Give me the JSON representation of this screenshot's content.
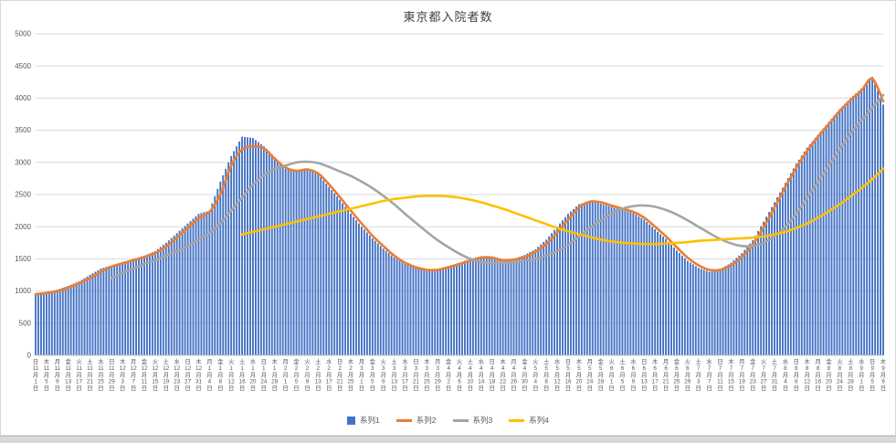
{
  "chart": {
    "title": "東京都入院者数",
    "legend_position": "bottom",
    "colors": {
      "bar": "#4472C4",
      "line2": "#ED7D31",
      "line3": "#A5A5A5",
      "line4": "#FFC000",
      "gridline": "#D9D9D9",
      "axis_text": "#595959",
      "title_text": "#404040"
    }
  },
  "chart_data": {
    "type": "combo",
    "title": "東京都入院者数",
    "ylabel": "",
    "xlabel": "",
    "ylim": [
      0,
      5000
    ],
    "ytick_interval": 500,
    "y_ticks": [
      0,
      500,
      1000,
      1500,
      2000,
      2500,
      3000,
      3500,
      4000,
      4500,
      5000
    ],
    "grid": "horizontal",
    "legend_position": "bottom",
    "x_ticks": [
      "日 11月1日",
      "木 11月5日",
      "月 11月9日",
      "金 11月13日",
      "火 11月17日",
      "土 11月21日",
      "水 11月25日",
      "日 11月29日",
      "木 12月3日",
      "月 12月7日",
      "金 12月11日",
      "火 12月15日",
      "土 12月19日",
      "水 12月23日",
      "日 12月27日",
      "木 12月31日",
      "月 1月4日",
      "金 1月8日",
      "火 1月12日",
      "土 1月16日",
      "水 1月20日",
      "日 1月24日",
      "木 1月28日",
      "月 2月1日",
      "金 2月5日",
      "火 2月9日",
      "土 2月13日",
      "水 2月17日",
      "日 2月21日",
      "木 2月25日",
      "月 3月1日",
      "金 3月5日",
      "火 3月9日",
      "土 3月13日",
      "水 3月17日",
      "日 3月21日",
      "木 3月25日",
      "月 3月29日",
      "金 4月2日",
      "火 4月6日",
      "土 4月10日",
      "水 4月14日",
      "日 4月18日",
      "木 4月22日",
      "月 4月26日",
      "金 4月30日",
      "火 5月4日",
      "土 5月8日",
      "水 5月12日",
      "日 5月16日",
      "木 5月20日",
      "月 5月24日",
      "金 5月28日",
      "火 6月1日",
      "土 6月5日",
      "水 6月9日",
      "日 6月13日",
      "木 6月17日",
      "月 6月21日",
      "金 6月25日",
      "火 6月29日",
      "土 7月3日",
      "水 7月7日",
      "日 7月11日",
      "木 7月15日",
      "月 7月19日",
      "金 7月23日",
      "火 7月27日",
      "土 7月31日",
      "水 8月4日",
      "日 8月8日",
      "木 8月12日",
      "月 8月16日",
      "金 8月20日",
      "火 8月24日",
      "土 8月28日",
      "水 9月1日",
      "日 9月5日",
      "木 9月9日"
    ],
    "sampling_note": "values read off the chart at the 4-day x-axis tick positions; bars in the source are daily",
    "series": [
      {
        "name": "系列1",
        "type": "bar",
        "color": "#4472C4",
        "values": [
          950,
          980,
          1020,
          1080,
          1150,
          1250,
          1350,
          1400,
          1450,
          1500,
          1550,
          1620,
          1750,
          1900,
          2050,
          2200,
          2250,
          2700,
          3100,
          3400,
          3380,
          3250,
          3080,
          2900,
          2860,
          2900,
          2820,
          2620,
          2420,
          2200,
          2000,
          1820,
          1660,
          1520,
          1420,
          1360,
          1310,
          1340,
          1390,
          1440,
          1500,
          1540,
          1510,
          1460,
          1500,
          1560,
          1650,
          1800,
          2000,
          2200,
          2350,
          2400,
          2360,
          2310,
          2260,
          2210,
          2110,
          1960,
          1810,
          1630,
          1470,
          1360,
          1300,
          1340,
          1440,
          1590,
          1790,
          2080,
          2380,
          2680,
          2980,
          3230,
          3430,
          3630,
          3830,
          4000,
          4150,
          4330,
          3900
        ]
      },
      {
        "name": "系列2",
        "type": "line",
        "color": "#ED7D31",
        "values": [
          950,
          970,
          1000,
          1050,
          1120,
          1200,
          1300,
          1380,
          1430,
          1480,
          1530,
          1590,
          1690,
          1830,
          1980,
          2130,
          2230,
          2500,
          2950,
          3200,
          3250,
          3220,
          3060,
          2920,
          2870,
          2890,
          2830,
          2660,
          2460,
          2250,
          2050,
          1860,
          1700,
          1550,
          1440,
          1370,
          1330,
          1330,
          1370,
          1420,
          1470,
          1520,
          1520,
          1480,
          1490,
          1530,
          1610,
          1730,
          1910,
          2110,
          2300,
          2390,
          2380,
          2330,
          2280,
          2230,
          2140,
          2000,
          1850,
          1680,
          1520,
          1400,
          1330,
          1330,
          1400,
          1530,
          1720,
          1990,
          2300,
          2620,
          2920,
          3180,
          3400,
          3600,
          3800,
          3970,
          4120,
          4300,
          3950
        ]
      },
      {
        "name": "系列3",
        "type": "line",
        "color": "#A5A5A5",
        "values": [
          null,
          null,
          null,
          null,
          null,
          null,
          null,
          1200,
          1280,
          1350,
          1420,
          1480,
          1550,
          1620,
          1700,
          1800,
          1900,
          2050,
          2250,
          2450,
          2650,
          2800,
          2900,
          2950,
          3000,
          3010,
          2990,
          2930,
          2860,
          2790,
          2700,
          2600,
          2480,
          2350,
          2200,
          2060,
          1920,
          1790,
          1680,
          1580,
          1500,
          1450,
          1430,
          1430,
          1450,
          1470,
          1500,
          1550,
          1620,
          1720,
          1850,
          1980,
          2100,
          2200,
          2280,
          2320,
          2330,
          2310,
          2260,
          2190,
          2100,
          2000,
          1900,
          1810,
          1740,
          1700,
          1700,
          1750,
          1850,
          2000,
          2200,
          2450,
          2700,
          2950,
          3200,
          3450,
          3650,
          3850,
          4050
        ]
      },
      {
        "name": "系列4",
        "type": "line",
        "color": "#FFC000",
        "values": [
          null,
          null,
          null,
          null,
          null,
          null,
          null,
          null,
          null,
          null,
          null,
          null,
          null,
          null,
          null,
          null,
          null,
          null,
          null,
          1880,
          1920,
          1960,
          2000,
          2040,
          2080,
          2120,
          2160,
          2200,
          2240,
          2280,
          2320,
          2360,
          2400,
          2430,
          2450,
          2470,
          2480,
          2480,
          2470,
          2450,
          2420,
          2380,
          2330,
          2280,
          2220,
          2160,
          2100,
          2040,
          1980,
          1930,
          1880,
          1840,
          1800,
          1770,
          1750,
          1740,
          1730,
          1730,
          1740,
          1750,
          1760,
          1780,
          1790,
          1800,
          1810,
          1820,
          1830,
          1850,
          1880,
          1920,
          1980,
          2050,
          2140,
          2240,
          2350,
          2470,
          2600,
          2740,
          2900
        ]
      }
    ]
  }
}
